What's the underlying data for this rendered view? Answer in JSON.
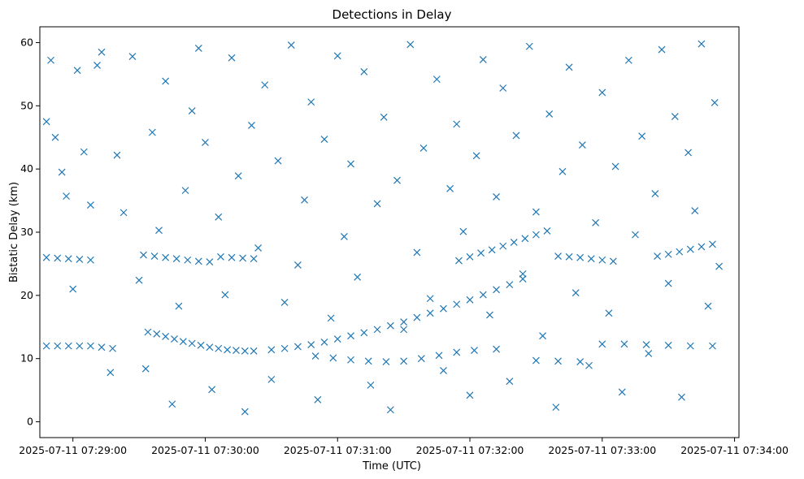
{
  "chart_data": {
    "type": "scatter",
    "title": "Detections in Delay",
    "xlabel": "Time (UTC)",
    "ylabel": "Bistatic Delay (km)",
    "x_axis_type": "datetime",
    "xlim": [
      "2025-07-11 07:28:45",
      "2025-07-11 07:34:02"
    ],
    "ylim": [
      -2.5,
      62.5
    ],
    "x_ticks": [
      "2025-07-11 07:29:00",
      "2025-07-11 07:30:00",
      "2025-07-11 07:31:00",
      "2025-07-11 07:32:00",
      "2025-07-11 07:33:00",
      "2025-07-11 07:34:00"
    ],
    "y_ticks": [
      0,
      10,
      20,
      30,
      40,
      50,
      60
    ],
    "marker": "x",
    "marker_color": "#1f77b4",
    "grid": false,
    "legend": "none",
    "series": [
      {
        "kind": "track",
        "points": [
          [
            "07:28:48",
            12
          ],
          [
            "07:28:53",
            12
          ],
          [
            "07:28:58",
            12
          ],
          [
            "07:29:03",
            12
          ],
          [
            "07:29:08",
            12
          ],
          [
            "07:29:13",
            11.8
          ],
          [
            "07:29:18",
            11.6
          ],
          [
            "07:29:34",
            14.2
          ],
          [
            "07:29:38",
            13.9
          ],
          [
            "07:29:42",
            13.5
          ],
          [
            "07:29:46",
            13.1
          ],
          [
            "07:29:50",
            12.7
          ],
          [
            "07:29:54",
            12.4
          ],
          [
            "07:29:58",
            12.1
          ],
          [
            "07:30:02",
            11.8
          ],
          [
            "07:30:06",
            11.6
          ],
          [
            "07:30:10",
            11.4
          ],
          [
            "07:30:14",
            11.3
          ],
          [
            "07:30:18",
            11.2
          ],
          [
            "07:30:22",
            11.2
          ],
          [
            "07:30:30",
            11.4
          ],
          [
            "07:30:36",
            11.6
          ],
          [
            "07:30:42",
            11.9
          ],
          [
            "07:30:48",
            12.2
          ],
          [
            "07:30:54",
            12.6
          ],
          [
            "07:31:00",
            13.1
          ],
          [
            "07:31:06",
            13.6
          ],
          [
            "07:31:12",
            14.1
          ],
          [
            "07:31:18",
            14.6
          ],
          [
            "07:31:24",
            15.2
          ],
          [
            "07:31:30",
            15.8
          ],
          [
            "07:31:36",
            16.5
          ],
          [
            "07:31:42",
            17.2
          ],
          [
            "07:31:48",
            17.9
          ],
          [
            "07:31:54",
            18.6
          ],
          [
            "07:32:00",
            19.3
          ],
          [
            "07:32:06",
            20.1
          ],
          [
            "07:32:12",
            20.9
          ],
          [
            "07:32:18",
            21.7
          ],
          [
            "07:32:24",
            22.6
          ]
        ]
      },
      {
        "kind": "track",
        "points": [
          [
            "07:28:48",
            26
          ],
          [
            "07:28:53",
            25.9
          ],
          [
            "07:28:58",
            25.8
          ],
          [
            "07:29:03",
            25.7
          ],
          [
            "07:29:08",
            25.6
          ],
          [
            "07:29:32",
            26.4
          ],
          [
            "07:29:37",
            26.2
          ],
          [
            "07:29:42",
            26
          ],
          [
            "07:29:47",
            25.8
          ],
          [
            "07:29:52",
            25.6
          ],
          [
            "07:29:57",
            25.4
          ],
          [
            "07:30:02",
            25.3
          ],
          [
            "07:30:07",
            26.1
          ],
          [
            "07:30:12",
            26
          ],
          [
            "07:30:17",
            25.9
          ],
          [
            "07:30:22",
            25.8
          ],
          [
            "07:31:55",
            25.5
          ],
          [
            "07:32:00",
            26.1
          ],
          [
            "07:32:05",
            26.7
          ],
          [
            "07:32:10",
            27.2
          ],
          [
            "07:32:15",
            27.8
          ],
          [
            "07:32:20",
            28.4
          ],
          [
            "07:32:25",
            29
          ],
          [
            "07:32:30",
            29.6
          ],
          [
            "07:32:35",
            30.2
          ],
          [
            "07:32:40",
            26.2
          ],
          [
            "07:32:45",
            26.1
          ],
          [
            "07:32:50",
            26
          ],
          [
            "07:32:55",
            25.8
          ],
          [
            "07:33:00",
            25.6
          ],
          [
            "07:33:05",
            25.4
          ]
        ]
      },
      {
        "kind": "track",
        "points": [
          [
            "07:30:50",
            10.4
          ],
          [
            "07:30:58",
            10.1
          ],
          [
            "07:31:06",
            9.8
          ],
          [
            "07:31:14",
            9.6
          ],
          [
            "07:31:22",
            9.5
          ],
          [
            "07:31:30",
            9.6
          ],
          [
            "07:31:38",
            10
          ],
          [
            "07:31:46",
            10.5
          ],
          [
            "07:31:54",
            11
          ],
          [
            "07:32:02",
            11.3
          ],
          [
            "07:32:12",
            11.5
          ],
          [
            "07:32:30",
            9.7
          ],
          [
            "07:32:40",
            9.6
          ],
          [
            "07:32:50",
            9.5
          ],
          [
            "07:33:00",
            12.3
          ],
          [
            "07:33:10",
            12.3
          ],
          [
            "07:33:20",
            12.2
          ],
          [
            "07:33:30",
            12.1
          ],
          [
            "07:33:40",
            12
          ],
          [
            "07:33:50",
            12
          ]
        ]
      },
      {
        "kind": "track",
        "points": [
          [
            "07:33:25",
            26.2
          ],
          [
            "07:33:30",
            26.5
          ],
          [
            "07:33:35",
            26.9
          ],
          [
            "07:33:40",
            27.3
          ],
          [
            "07:33:45",
            27.7
          ],
          [
            "07:33:50",
            28.1
          ]
        ]
      },
      {
        "kind": "clutter",
        "points": [
          [
            "07:28:48",
            47.5
          ],
          [
            "07:28:50",
            57.2
          ],
          [
            "07:28:52",
            45
          ],
          [
            "07:28:55",
            39.5
          ],
          [
            "07:28:57",
            35.7
          ],
          [
            "07:29:00",
            21
          ],
          [
            "07:29:02",
            55.6
          ],
          [
            "07:29:05",
            42.7
          ],
          [
            "07:29:08",
            34.3
          ],
          [
            "07:29:11",
            56.4
          ],
          [
            "07:29:13",
            58.5
          ],
          [
            "07:29:17",
            7.8
          ],
          [
            "07:29:20",
            42.2
          ],
          [
            "07:29:23",
            33.1
          ],
          [
            "07:29:27",
            57.8
          ],
          [
            "07:29:30",
            22.4
          ],
          [
            "07:29:33",
            8.4
          ],
          [
            "07:29:36",
            45.8
          ],
          [
            "07:29:39",
            30.3
          ],
          [
            "07:29:42",
            53.9
          ],
          [
            "07:29:45",
            2.8
          ],
          [
            "07:29:48",
            18.3
          ],
          [
            "07:29:51",
            36.6
          ],
          [
            "07:29:54",
            49.2
          ],
          [
            "07:29:57",
            59.1
          ],
          [
            "07:30:00",
            44.2
          ],
          [
            "07:30:03",
            5.1
          ],
          [
            "07:30:06",
            32.4
          ],
          [
            "07:30:09",
            20.1
          ],
          [
            "07:30:12",
            57.6
          ],
          [
            "07:30:15",
            38.9
          ],
          [
            "07:30:18",
            1.6
          ],
          [
            "07:30:21",
            46.9
          ],
          [
            "07:30:24",
            27.5
          ],
          [
            "07:30:27",
            53.3
          ],
          [
            "07:30:30",
            6.7
          ],
          [
            "07:30:33",
            41.3
          ],
          [
            "07:30:36",
            18.9
          ],
          [
            "07:30:39",
            59.6
          ],
          [
            "07:30:42",
            24.8
          ],
          [
            "07:30:45",
            35.1
          ],
          [
            "07:30:48",
            50.6
          ],
          [
            "07:30:51",
            3.5
          ],
          [
            "07:30:54",
            44.7
          ],
          [
            "07:30:57",
            16.4
          ],
          [
            "07:31:00",
            57.9
          ],
          [
            "07:31:03",
            29.3
          ],
          [
            "07:31:06",
            40.8
          ],
          [
            "07:31:09",
            22.9
          ],
          [
            "07:31:12",
            55.4
          ],
          [
            "07:31:15",
            5.8
          ],
          [
            "07:31:18",
            34.5
          ],
          [
            "07:31:21",
            48.2
          ],
          [
            "07:31:24",
            1.9
          ],
          [
            "07:31:27",
            38.2
          ],
          [
            "07:31:30",
            14.6
          ],
          [
            "07:31:33",
            59.7
          ],
          [
            "07:31:36",
            26.8
          ],
          [
            "07:31:39",
            43.3
          ],
          [
            "07:31:42",
            19.5
          ],
          [
            "07:31:45",
            54.2
          ],
          [
            "07:31:48",
            8.1
          ],
          [
            "07:31:51",
            36.9
          ],
          [
            "07:31:54",
            47.1
          ],
          [
            "07:31:57",
            30.1
          ],
          [
            "07:32:00",
            4.2
          ],
          [
            "07:32:03",
            42.1
          ],
          [
            "07:32:06",
            57.3
          ],
          [
            "07:32:09",
            16.9
          ],
          [
            "07:32:12",
            35.6
          ],
          [
            "07:32:15",
            52.8
          ],
          [
            "07:32:18",
            6.4
          ],
          [
            "07:32:21",
            45.3
          ],
          [
            "07:32:24",
            23.4
          ],
          [
            "07:32:27",
            59.4
          ],
          [
            "07:32:30",
            33.2
          ],
          [
            "07:32:33",
            13.6
          ],
          [
            "07:32:36",
            48.7
          ],
          [
            "07:32:39",
            2.3
          ],
          [
            "07:32:42",
            39.6
          ],
          [
            "07:32:45",
            56.1
          ],
          [
            "07:32:48",
            20.4
          ],
          [
            "07:32:51",
            43.8
          ],
          [
            "07:32:54",
            8.9
          ],
          [
            "07:32:57",
            31.5
          ],
          [
            "07:33:00",
            52.1
          ],
          [
            "07:33:03",
            17.2
          ],
          [
            "07:33:06",
            40.4
          ],
          [
            "07:33:09",
            4.7
          ],
          [
            "07:33:12",
            57.2
          ],
          [
            "07:33:15",
            29.6
          ],
          [
            "07:33:18",
            45.2
          ],
          [
            "07:33:21",
            10.8
          ],
          [
            "07:33:24",
            36.1
          ],
          [
            "07:33:27",
            58.9
          ],
          [
            "07:33:30",
            21.9
          ],
          [
            "07:33:33",
            48.3
          ],
          [
            "07:33:36",
            3.9
          ],
          [
            "07:33:39",
            42.6
          ],
          [
            "07:33:42",
            33.4
          ],
          [
            "07:33:45",
            59.8
          ],
          [
            "07:33:48",
            18.3
          ],
          [
            "07:33:51",
            50.5
          ],
          [
            "07:33:53",
            24.6
          ]
        ]
      }
    ]
  }
}
